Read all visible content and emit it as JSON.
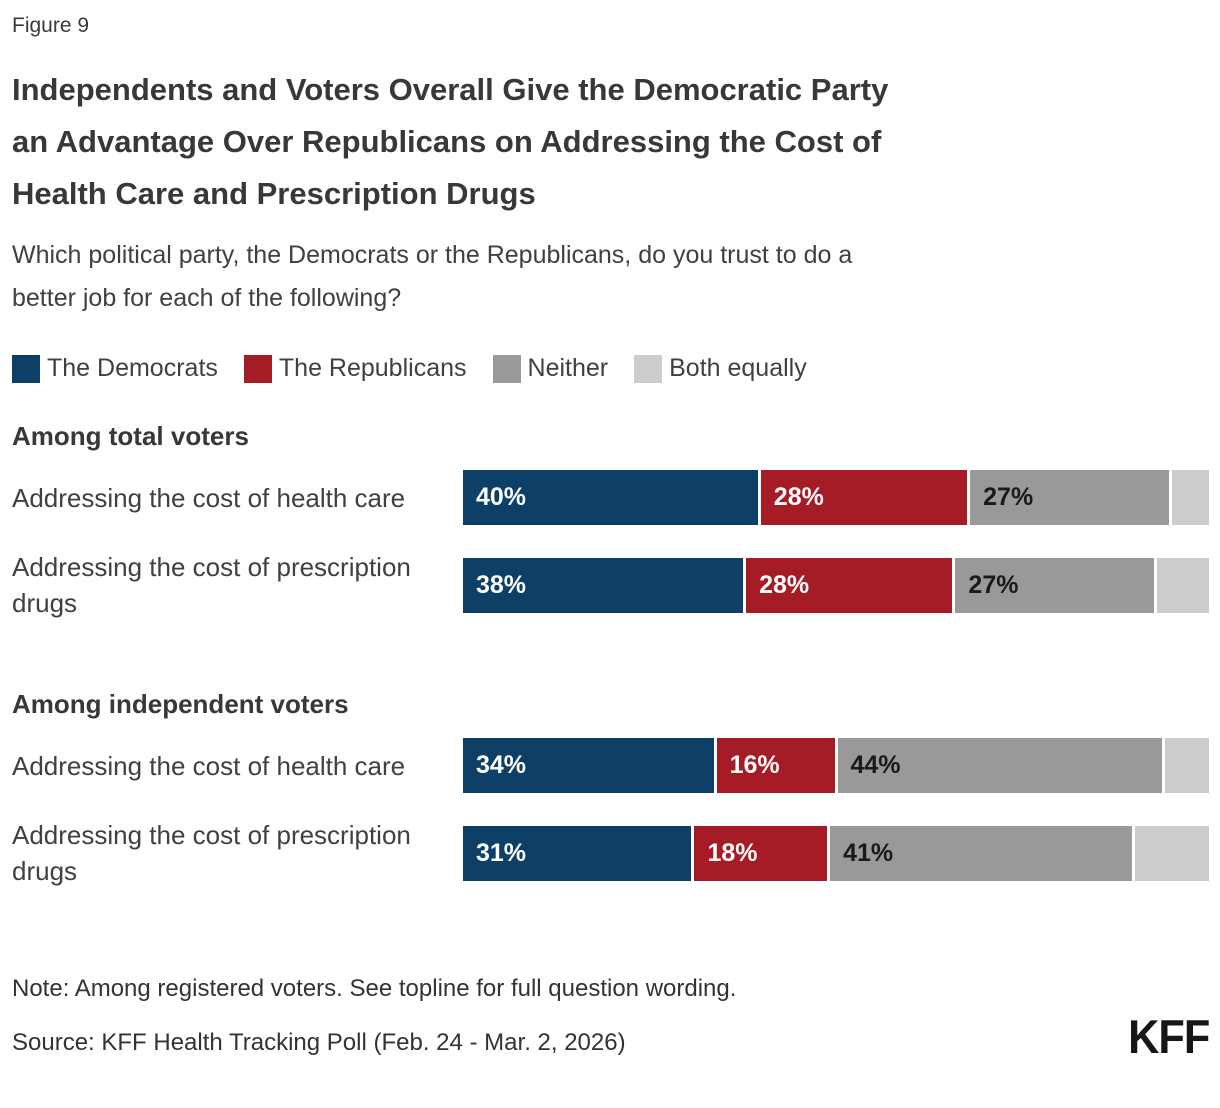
{
  "figure_label": "Figure 9",
  "title": {
    "lines": [
      "Independents and Voters Overall Give the Democratic Party",
      "an Advantage Over Republicans on Addressing the Cost of",
      "Health Care and Prescription Drugs"
    ]
  },
  "subtitle": {
    "lines": [
      "Which political party, the Democrats or the Republicans, do you trust to do a",
      "better job for each of the following?"
    ]
  },
  "colors": {
    "democrats": "#0D3F67",
    "republicans": "#A61C26",
    "neither": "#999999",
    "both_equally": "#CCCCCC",
    "label_on_dark": "#FFFFFF",
    "label_on_gray": "#1A1A1A"
  },
  "legend": {
    "items": [
      {
        "key": "democrats",
        "label": "The Democrats",
        "color": "#0D3F67"
      },
      {
        "key": "republicans",
        "label": "The Republicans",
        "color": "#A61C26"
      },
      {
        "key": "neither",
        "label": "Neither",
        "color": "#999999"
      },
      {
        "key": "both_equally",
        "label": "Both equally",
        "color": "#CCCCCC"
      }
    ]
  },
  "chart_data": {
    "type": "bar",
    "orientation": "horizontal-stacked",
    "x_range_pct": [
      0,
      100
    ],
    "legend_position": "top",
    "series_order": [
      "The Democrats",
      "The Republicans",
      "Neither",
      "Both equally"
    ],
    "groups": [
      {
        "heading": "Among total voters",
        "rows": [
          {
            "label": "Addressing the cost of health care",
            "segments": [
              {
                "key": "democrats",
                "value": 40,
                "label": "40%"
              },
              {
                "key": "republicans",
                "value": 28,
                "label": "28%"
              },
              {
                "key": "neither",
                "value": 27,
                "label": "27%"
              },
              {
                "key": "both_equally",
                "value": 5,
                "label": ""
              }
            ]
          },
          {
            "label": "Addressing the cost of prescription drugs",
            "segments": [
              {
                "key": "democrats",
                "value": 38,
                "label": "38%"
              },
              {
                "key": "republicans",
                "value": 28,
                "label": "28%"
              },
              {
                "key": "neither",
                "value": 27,
                "label": "27%"
              },
              {
                "key": "both_equally",
                "value": 7,
                "label": ""
              }
            ]
          }
        ]
      },
      {
        "heading": "Among independent voters",
        "rows": [
          {
            "label": "Addressing the cost of health care",
            "segments": [
              {
                "key": "democrats",
                "value": 34,
                "label": "34%"
              },
              {
                "key": "republicans",
                "value": 16,
                "label": "16%"
              },
              {
                "key": "neither",
                "value": 44,
                "label": "44%"
              },
              {
                "key": "both_equally",
                "value": 6,
                "label": ""
              }
            ]
          },
          {
            "label": "Addressing the cost of prescription drugs",
            "segments": [
              {
                "key": "democrats",
                "value": 31,
                "label": "31%"
              },
              {
                "key": "republicans",
                "value": 18,
                "label": "18%"
              },
              {
                "key": "neither",
                "value": 41,
                "label": "41%"
              },
              {
                "key": "both_equally",
                "value": 10,
                "label": ""
              }
            ]
          }
        ]
      }
    ]
  },
  "note": "Note: Among registered voters. See topline for full question wording.",
  "source": "Source: KFF Health Tracking Poll (Feb. 24 - Mar. 2, 2026)",
  "logo": "KFF"
}
